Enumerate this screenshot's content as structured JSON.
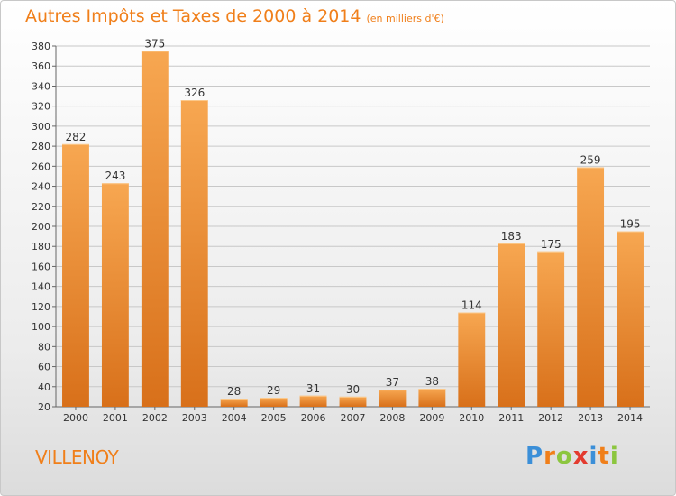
{
  "title": "Autres Impôts et Taxes de 2000 à 2014",
  "subtitle": "(en milliers d'€)",
  "commune": "VILLENOY",
  "brand": {
    "letters": [
      "P",
      "r",
      "o",
      "x",
      "i",
      "t",
      "i"
    ],
    "colors": [
      "#3b8fd8",
      "#f07f1a",
      "#8cc63f",
      "#e33b2f",
      "#3b8fd8",
      "#f07f1a",
      "#8cc63f"
    ]
  },
  "colors": {
    "bar_top": "#f7a751",
    "bar_bottom": "#d8701a",
    "accent": "#f07f1a",
    "grid": "#c8c8c8"
  },
  "chart_data": {
    "type": "bar",
    "categories": [
      "2000",
      "2001",
      "2002",
      "2003",
      "2004",
      "2005",
      "2006",
      "2007",
      "2008",
      "2009",
      "2010",
      "2011",
      "2012",
      "2013",
      "2014"
    ],
    "values": [
      282,
      243,
      375,
      326,
      28,
      29,
      31,
      30,
      37,
      38,
      114,
      183,
      175,
      259,
      195
    ],
    "ylim": [
      20,
      380
    ],
    "yticks": [
      20,
      40,
      60,
      80,
      100,
      120,
      140,
      160,
      180,
      200,
      220,
      240,
      260,
      280,
      300,
      320,
      340,
      360,
      380
    ],
    "grid": true,
    "data_labels": true
  }
}
